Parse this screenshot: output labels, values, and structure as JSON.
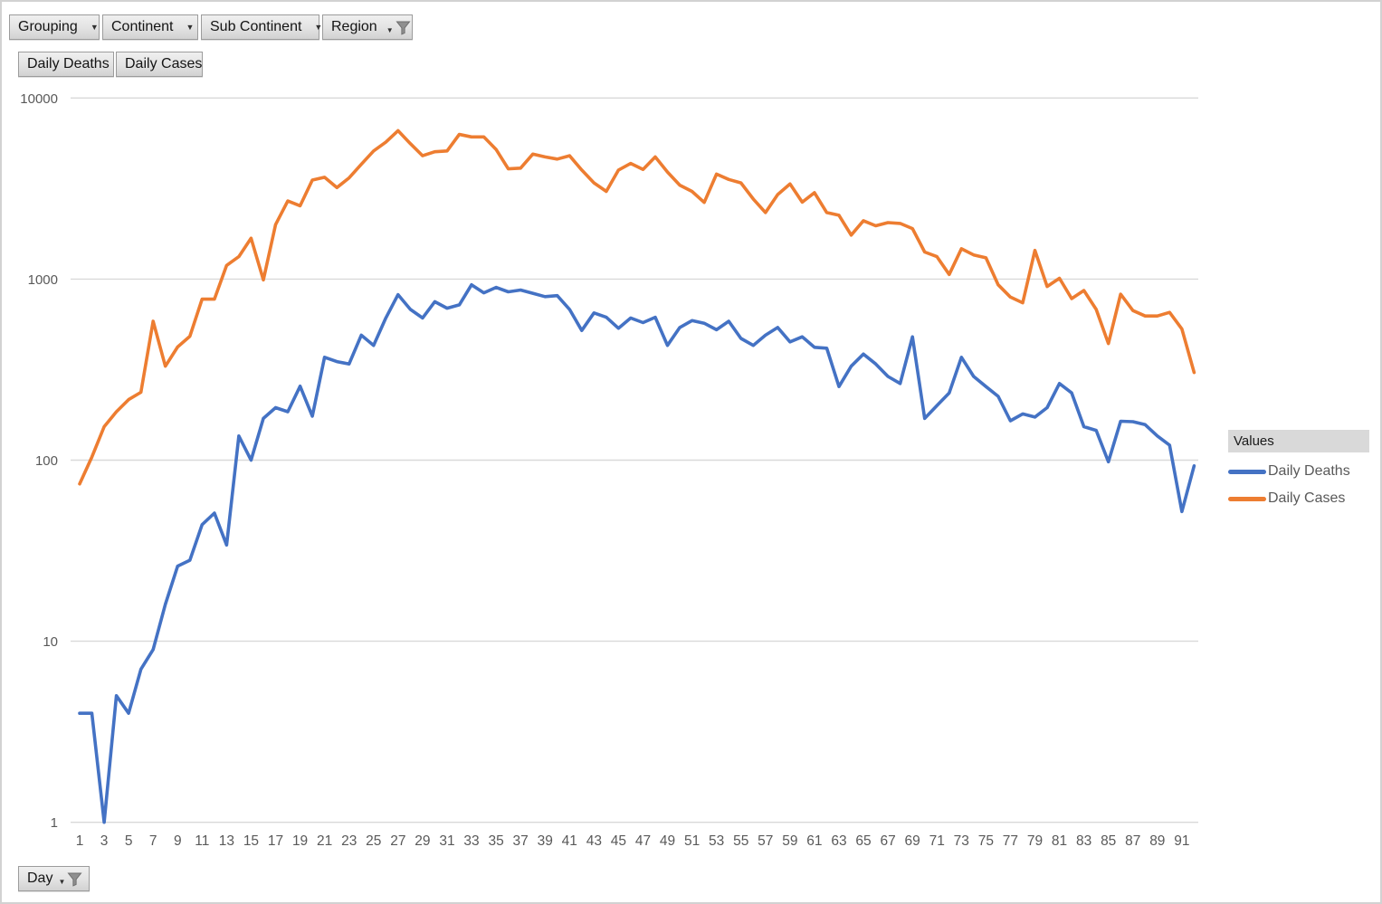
{
  "header": {
    "filters": [
      {
        "label": "Grouping",
        "icon": "dropdown-arrow"
      },
      {
        "label": "Continent",
        "icon": "dropdown-arrow"
      },
      {
        "label": "Sub Continent",
        "icon": "dropdown-arrow"
      },
      {
        "label": "Region",
        "icon": "dropdown-arrow-and-filter-funnel"
      }
    ],
    "series_buttons": [
      {
        "label": "Daily Deaths"
      },
      {
        "label": "Daily Cases"
      }
    ],
    "axis_button": {
      "label": "Day",
      "icon": "dropdown-arrow-and-filter-funnel"
    }
  },
  "legend": {
    "title": "Values",
    "items": [
      {
        "label": "Daily Deaths",
        "color": "#4472C4"
      },
      {
        "label": "Daily Cases",
        "color": "#ED7D31"
      }
    ]
  },
  "colors": {
    "gridline": "#d9d9d9",
    "tick_text": "#595959",
    "series_blue": "#4472C4",
    "series_orange": "#ED7D31"
  },
  "chart_data": {
    "type": "line",
    "y_scale": "log",
    "grid": true,
    "legend_position": "right",
    "ylim": [
      1,
      10000
    ],
    "y_ticks": [
      1,
      10,
      100,
      1000,
      10000
    ],
    "x_tick_labels": [
      1,
      3,
      5,
      7,
      9,
      11,
      13,
      15,
      17,
      19,
      21,
      23,
      25,
      27,
      29,
      31,
      33,
      35,
      37,
      39,
      41,
      43,
      45,
      47,
      49,
      51,
      53,
      55,
      57,
      59,
      61,
      63,
      65,
      67,
      69,
      71,
      73,
      75,
      77,
      79,
      81,
      83,
      85,
      87,
      89,
      91
    ],
    "x": [
      1,
      2,
      3,
      4,
      5,
      6,
      7,
      8,
      9,
      10,
      11,
      12,
      13,
      14,
      15,
      16,
      17,
      18,
      19,
      20,
      21,
      22,
      23,
      24,
      25,
      26,
      27,
      28,
      29,
      30,
      31,
      32,
      33,
      34,
      35,
      36,
      37,
      38,
      39,
      40,
      41,
      42,
      43,
      44,
      45,
      46,
      47,
      48,
      49,
      50,
      51,
      52,
      53,
      54,
      55,
      56,
      57,
      58,
      59,
      60,
      61,
      62,
      63,
      64,
      65,
      66,
      67,
      68,
      69,
      70,
      71,
      72,
      73,
      74,
      75,
      76,
      77,
      78,
      79,
      80,
      81,
      82,
      83,
      84,
      85,
      86,
      87,
      88,
      89,
      90,
      91,
      92
    ],
    "series": [
      {
        "name": "Daily Deaths",
        "color": "#4472C4",
        "values": [
          4,
          4,
          1,
          5,
          4,
          7,
          9,
          16,
          26,
          28,
          44,
          51,
          34,
          136,
          100,
          170,
          195,
          185,
          256,
          175,
          370,
          350,
          340,
          490,
          430,
          610,
          820,
          680,
          610,
          750,
          690,
          720,
          930,
          840,
          900,
          850,
          870,
          835,
          800,
          810,
          680,
          520,
          650,
          615,
          535,
          610,
          575,
          615,
          430,
          540,
          590,
          570,
          525,
          585,
          470,
          430,
          490,
          540,
          450,
          480,
          420,
          415,
          255,
          330,
          385,
          340,
          290,
          265,
          480,
          170,
          200,
          235,
          370,
          290,
          255,
          225,
          165,
          180,
          173,
          195,
          265,
          235,
          153,
          146,
          98,
          164,
          163,
          157,
          136,
          121,
          52,
          93
        ]
      },
      {
        "name": "Daily Cases",
        "color": "#ED7D31",
        "values": [
          74,
          104,
          153,
          185,
          216,
          237,
          585,
          330,
          422,
          483,
          775,
          775,
          1190,
          1330,
          1680,
          990,
          2000,
          2700,
          2540,
          3520,
          3650,
          3200,
          3620,
          4300,
          5100,
          5700,
          6600,
          5600,
          4800,
          5050,
          5100,
          6300,
          6100,
          6100,
          5200,
          4060,
          4100,
          4900,
          4730,
          4600,
          4800,
          4000,
          3400,
          3050,
          4000,
          4350,
          4030,
          4730,
          3900,
          3300,
          3050,
          2650,
          3800,
          3550,
          3400,
          2770,
          2330,
          2930,
          3350,
          2660,
          3000,
          2330,
          2250,
          1750,
          2100,
          1970,
          2050,
          2030,
          1900,
          1410,
          1330,
          1060,
          1470,
          1360,
          1310,
          930,
          795,
          740,
          1440,
          910,
          1010,
          780,
          865,
          680,
          440,
          825,
          670,
          625,
          625,
          655,
          530,
          305
        ]
      }
    ]
  }
}
